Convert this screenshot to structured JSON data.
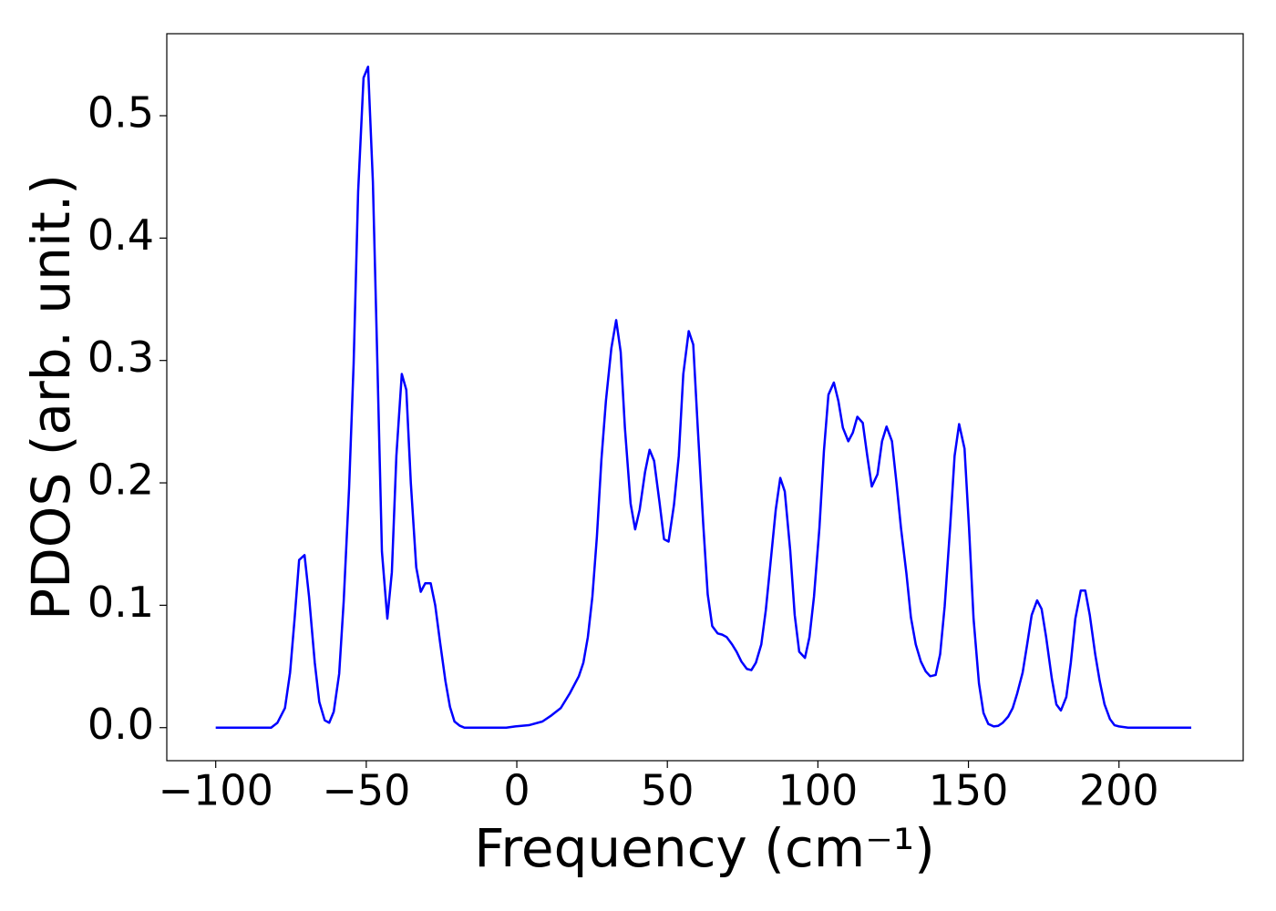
{
  "chart_data": {
    "type": "line",
    "xlabel": "Frequency (cm⁻¹)",
    "ylabel": "PDOS (arb. unit.)",
    "color": "#0000ff",
    "x": [
      -100,
      -81.6,
      -79.5,
      -77,
      -75.3,
      -73.8,
      -72.3,
      -70.5,
      -69,
      -67.1,
      -65.6,
      -63.8,
      -62.3,
      -60.8,
      -59,
      -57.5,
      -55.7,
      -54.2,
      -52.7,
      -50.9,
      -49.4,
      -47.8,
      -46.3,
      -44.8,
      -43,
      -41.5,
      -40,
      -38.2,
      -36.7,
      -35.2,
      -33.4,
      -31.9,
      -30.4,
      -28.6,
      -27.1,
      -25.5,
      -23.7,
      -22.2,
      -20.7,
      -18.9,
      -17.4,
      -10,
      -3.5,
      -0.5,
      4,
      8.5,
      11.5,
      14.6,
      17.6,
      20.6,
      22.1,
      23.6,
      25.1,
      26.6,
      28.1,
      29.6,
      31.4,
      33,
      34.5,
      35.9,
      37.8,
      39.3,
      40.8,
      42.6,
      44.1,
      45.6,
      47.4,
      48.9,
      50.4,
      52.2,
      53.8,
      55.3,
      57.1,
      58.6,
      60.1,
      61.9,
      63.4,
      64.9,
      66.7,
      68.2,
      69.7,
      71.5,
      73,
      74.6,
      76.4,
      77.9,
      79.4,
      81.2,
      82.7,
      84.2,
      86,
      87.5,
      89,
      90.8,
      92.3,
      93.8,
      95.7,
      97.2,
      98.7,
      100.5,
      102,
      103.5,
      105.3,
      106.8,
      108.3,
      110.1,
      111.6,
      113.1,
      114.9,
      116.4,
      117.9,
      119.8,
      121.3,
      122.8,
      124.6,
      126.1,
      127.6,
      129.4,
      130.9,
      132.5,
      134.2,
      135.8,
      137.3,
      139.1,
      140.6,
      142.1,
      143.9,
      145.4,
      146.9,
      148.7,
      150.2,
      151.7,
      153.5,
      155,
      156.6,
      158.4,
      159.9,
      161.4,
      163.2,
      164.7,
      166.2,
      168,
      169.5,
      171,
      172.8,
      174.3,
      175.8,
      177.7,
      179.2,
      180.7,
      182.5,
      184,
      185.5,
      187.3,
      188.8,
      190.3,
      192.1,
      193.6,
      195.2,
      197,
      198.5,
      200,
      203,
      224
    ],
    "values": [
      0,
      0,
      0.004,
      0.016,
      0.045,
      0.089,
      0.137,
      0.141,
      0.107,
      0.053,
      0.021,
      0.006,
      0.004,
      0.013,
      0.044,
      0.103,
      0.196,
      0.297,
      0.438,
      0.531,
      0.54,
      0.446,
      0.297,
      0.144,
      0.089,
      0.127,
      0.222,
      0.289,
      0.276,
      0.2,
      0.131,
      0.111,
      0.118,
      0.118,
      0.1,
      0.07,
      0.038,
      0.017,
      0.005,
      0.0015,
      0,
      0,
      0,
      0.001,
      0.002,
      0.005,
      0.01,
      0.016,
      0.028,
      0.042,
      0.053,
      0.074,
      0.107,
      0.156,
      0.219,
      0.267,
      0.31,
      0.333,
      0.307,
      0.245,
      0.183,
      0.162,
      0.178,
      0.209,
      0.227,
      0.218,
      0.184,
      0.154,
      0.152,
      0.182,
      0.222,
      0.289,
      0.324,
      0.313,
      0.245,
      0.167,
      0.109,
      0.083,
      0.077,
      0.076,
      0.074,
      0.068,
      0.062,
      0.054,
      0.048,
      0.047,
      0.053,
      0.068,
      0.096,
      0.133,
      0.178,
      0.204,
      0.193,
      0.145,
      0.092,
      0.062,
      0.057,
      0.074,
      0.107,
      0.163,
      0.226,
      0.272,
      0.282,
      0.267,
      0.245,
      0.234,
      0.241,
      0.254,
      0.249,
      0.222,
      0.197,
      0.207,
      0.234,
      0.246,
      0.234,
      0.2,
      0.163,
      0.126,
      0.09,
      0.068,
      0.054,
      0.046,
      0.042,
      0.043,
      0.06,
      0.099,
      0.163,
      0.222,
      0.248,
      0.228,
      0.163,
      0.089,
      0.036,
      0.012,
      0.003,
      0.001,
      0.0015,
      0.004,
      0.009,
      0.016,
      0.028,
      0.045,
      0.068,
      0.092,
      0.104,
      0.097,
      0.074,
      0.04,
      0.019,
      0.014,
      0.025,
      0.053,
      0.089,
      0.112,
      0.112,
      0.092,
      0.06,
      0.038,
      0.019,
      0.007,
      0.002,
      0.001,
      0,
      0
    ],
    "xlim": [
      -116.25,
      241.25
    ],
    "ylim": [
      -0.027,
      0.567
    ],
    "xticks": [
      {
        "value": -100,
        "label": "−100"
      },
      {
        "value": -50,
        "label": "−50"
      },
      0,
      50,
      100,
      150,
      200
    ],
    "yticks": [
      {
        "value": 0,
        "label": "0.0"
      },
      0.1,
      0.2,
      0.3,
      0.4,
      0.5
    ]
  }
}
